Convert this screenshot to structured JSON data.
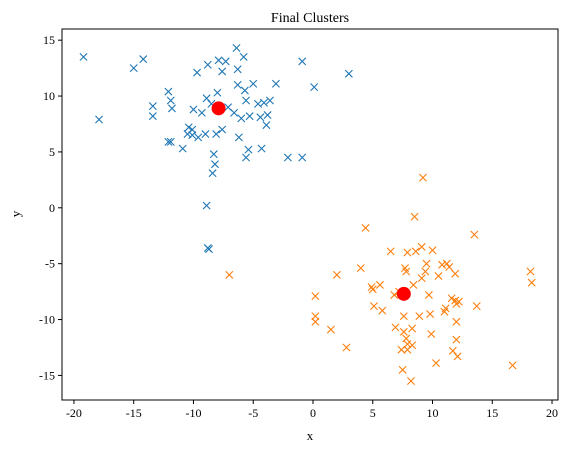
{
  "chart_data": {
    "type": "scatter",
    "title": "Final Clusters",
    "xlabel": "x",
    "ylabel": "y",
    "xlim": [
      -21,
      20.5
    ],
    "ylim": [
      -17.2,
      16
    ],
    "xticks": [
      -20,
      -15,
      -10,
      -5,
      0,
      5,
      10,
      15,
      20
    ],
    "yticks": [
      -15,
      -10,
      -5,
      0,
      5,
      10,
      15
    ],
    "grid": false,
    "legend": "none",
    "series": [
      {
        "marker": "x",
        "color": "#1f77b4",
        "points": [
          [
            -19.2,
            13.5
          ],
          [
            -17.9,
            7.9
          ],
          [
            -15.0,
            12.5
          ],
          [
            -14.2,
            13.3
          ],
          [
            -13.4,
            9.1
          ],
          [
            -13.4,
            8.2
          ],
          [
            -12.1,
            10.4
          ],
          [
            -11.9,
            9.6
          ],
          [
            -11.8,
            8.9
          ],
          [
            -12.1,
            5.9
          ],
          [
            -11.9,
            5.9
          ],
          [
            -10.9,
            5.3
          ],
          [
            -10.5,
            6.6
          ],
          [
            -10.4,
            7.2
          ],
          [
            -10.1,
            7.0
          ],
          [
            -10.1,
            6.5
          ],
          [
            -10.0,
            8.8
          ],
          [
            -9.7,
            12.1
          ],
          [
            -9.6,
            6.3
          ],
          [
            -9.3,
            8.5
          ],
          [
            -9.0,
            6.6
          ],
          [
            -8.8,
            12.8
          ],
          [
            -8.9,
            9.8
          ],
          [
            -8.5,
            9.3
          ],
          [
            -8.3,
            4.8
          ],
          [
            -8.4,
            3.1
          ],
          [
            -8.2,
            3.9
          ],
          [
            -8.1,
            6.6
          ],
          [
            -8.0,
            10.3
          ],
          [
            -7.9,
            13.2
          ],
          [
            -7.6,
            12.2
          ],
          [
            -7.6,
            7.0
          ],
          [
            -7.3,
            13.1
          ],
          [
            -7.1,
            9.0
          ],
          [
            -6.6,
            8.5
          ],
          [
            -6.4,
            14.3
          ],
          [
            -6.3,
            12.4
          ],
          [
            -6.3,
            11.0
          ],
          [
            -6.2,
            6.3
          ],
          [
            -6.0,
            8.0
          ],
          [
            -5.8,
            13.5
          ],
          [
            -5.7,
            10.5
          ],
          [
            -5.6,
            9.6
          ],
          [
            -5.6,
            4.5
          ],
          [
            -5.4,
            5.2
          ],
          [
            -5.3,
            8.2
          ],
          [
            -5.0,
            11.1
          ],
          [
            -4.6,
            9.3
          ],
          [
            -4.4,
            8.1
          ],
          [
            -4.3,
            5.3
          ],
          [
            -4.1,
            9.4
          ],
          [
            -3.9,
            7.4
          ],
          [
            -3.8,
            8.3
          ],
          [
            -3.6,
            9.6
          ],
          [
            -3.1,
            11.1
          ],
          [
            -2.1,
            4.5
          ],
          [
            -0.9,
            13.1
          ],
          [
            -0.9,
            4.5
          ],
          [
            0.1,
            10.8
          ],
          [
            3.0,
            12.0
          ],
          [
            -8.9,
            0.2
          ],
          [
            -8.8,
            -3.6
          ],
          [
            -8.7,
            -3.7
          ]
        ]
      },
      {
        "marker": "x",
        "color": "#ff7f0e",
        "points": [
          [
            -7.0,
            -6.0
          ],
          [
            0.2,
            -7.9
          ],
          [
            0.2,
            -9.7
          ],
          [
            0.2,
            -10.2
          ],
          [
            1.5,
            -10.9
          ],
          [
            2.0,
            -6.0
          ],
          [
            2.8,
            -12.5
          ],
          [
            4.0,
            -5.4
          ],
          [
            4.4,
            -1.8
          ],
          [
            4.9,
            -7.1
          ],
          [
            5.0,
            -7.3
          ],
          [
            5.1,
            -8.8
          ],
          [
            5.6,
            -6.9
          ],
          [
            5.8,
            -9.2
          ],
          [
            6.5,
            -3.9
          ],
          [
            6.8,
            -7.8
          ],
          [
            6.9,
            -10.7
          ],
          [
            7.2,
            -7.5
          ],
          [
            7.4,
            -12.7
          ],
          [
            7.5,
            -14.5
          ],
          [
            7.6,
            -9.7
          ],
          [
            7.6,
            -11.1
          ],
          [
            7.7,
            -5.4
          ],
          [
            7.8,
            -5.7
          ],
          [
            7.8,
            -11.7
          ],
          [
            7.9,
            -12.2
          ],
          [
            7.9,
            -12.7
          ],
          [
            7.9,
            -4.0
          ],
          [
            8.2,
            -15.5
          ],
          [
            8.3,
            -12.3
          ],
          [
            8.3,
            -10.8
          ],
          [
            8.4,
            -6.9
          ],
          [
            8.5,
            -0.8
          ],
          [
            8.6,
            -3.9
          ],
          [
            8.9,
            -9.7
          ],
          [
            9.1,
            -6.3
          ],
          [
            9.1,
            -3.5
          ],
          [
            9.2,
            2.7
          ],
          [
            9.4,
            -5.7
          ],
          [
            9.5,
            -5.0
          ],
          [
            9.7,
            -7.8
          ],
          [
            9.8,
            -9.5
          ],
          [
            9.9,
            -11.3
          ],
          [
            10.0,
            -3.8
          ],
          [
            10.3,
            -13.9
          ],
          [
            10.5,
            -6.1
          ],
          [
            10.8,
            -5.1
          ],
          [
            11.0,
            -9.3
          ],
          [
            11.1,
            -9.0
          ],
          [
            11.2,
            -5.0
          ],
          [
            11.4,
            -5.3
          ],
          [
            11.6,
            -8.1
          ],
          [
            11.7,
            -12.8
          ],
          [
            11.9,
            -5.9
          ],
          [
            11.9,
            -8.3
          ],
          [
            12.0,
            -8.6
          ],
          [
            12.0,
            -10.2
          ],
          [
            12.0,
            -11.8
          ],
          [
            12.1,
            -13.3
          ],
          [
            12.2,
            -8.4
          ],
          [
            13.5,
            -2.4
          ],
          [
            13.7,
            -8.8
          ],
          [
            16.7,
            -14.1
          ],
          [
            18.2,
            -5.7
          ],
          [
            18.3,
            -6.7
          ]
        ]
      }
    ],
    "centroids": {
      "marker": "circle",
      "color": "#ff0000",
      "points": [
        [
          -7.9,
          8.9
        ],
        [
          7.6,
          -7.7
        ]
      ]
    }
  }
}
